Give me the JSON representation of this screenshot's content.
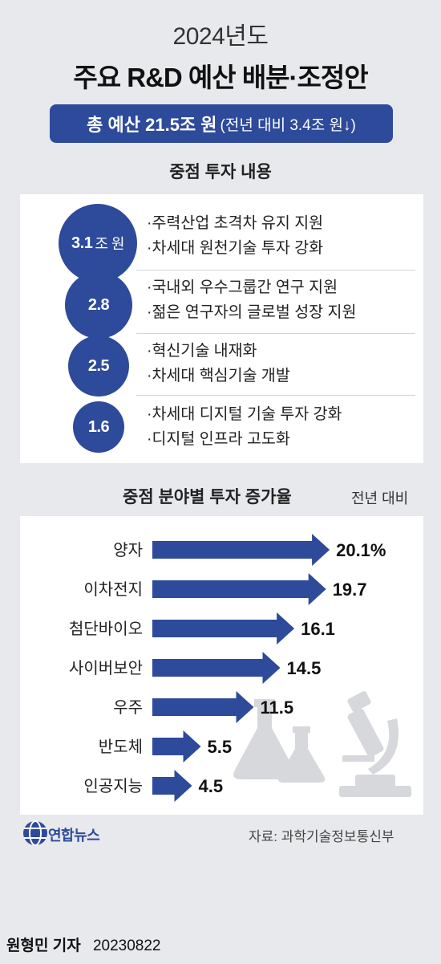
{
  "header": {
    "year": "2024년도",
    "title": "주요 R&D 예산 배분·조정안",
    "total_main": "총 예산 21.5조 원",
    "total_sub": "(전년 대비 3.4조 원↓)"
  },
  "focus": {
    "heading": "중점 투자 내용",
    "items": [
      {
        "amount": "3.1",
        "unit": "조 원",
        "lines": [
          "·주력산업 초격차 유지 지원",
          "·차세대 원천기술 투자 강화"
        ]
      },
      {
        "amount": "2.8",
        "unit": "",
        "lines": [
          "·국내외 우수그룹간 연구 지원",
          "·젊은 연구자의 글로벌 성장 지원"
        ]
      },
      {
        "amount": "2.5",
        "unit": "",
        "lines": [
          "·혁신기술 내재화",
          "·차세대 핵심기술 개발"
        ]
      },
      {
        "amount": "1.6",
        "unit": "",
        "lines": [
          "·차세대 디지털 기술 투자 강화",
          "·디지털 인프라 고도화"
        ]
      }
    ]
  },
  "colors": {
    "accent": "#2d4a9b",
    "background": "#e7e9ec",
    "panel": "#ffffff",
    "watermark": "#d6d8db"
  },
  "chart_data": {
    "type": "bar",
    "orientation": "horizontal",
    "title": "중점 분야별 투자 증가율",
    "subtitle": "전년 대비",
    "categories": [
      "양자",
      "이차전지",
      "첨단바이오",
      "사이버보안",
      "우주",
      "반도체",
      "인공지능"
    ],
    "values": [
      20.1,
      19.7,
      16.1,
      14.5,
      11.5,
      5.5,
      4.5
    ],
    "value_labels": [
      "20.1%",
      "19.7",
      "16.1",
      "14.5",
      "11.5",
      "5.5",
      "4.5"
    ],
    "xlim": [
      0,
      22
    ],
    "grid": false,
    "decorative_icons": [
      "flask-icon",
      "microscope-icon"
    ]
  },
  "footer": {
    "logo_text": "연합뉴스",
    "source": "자료: 과학기술정보통신부",
    "reporter": "원형민 기자",
    "date": "20230822"
  }
}
